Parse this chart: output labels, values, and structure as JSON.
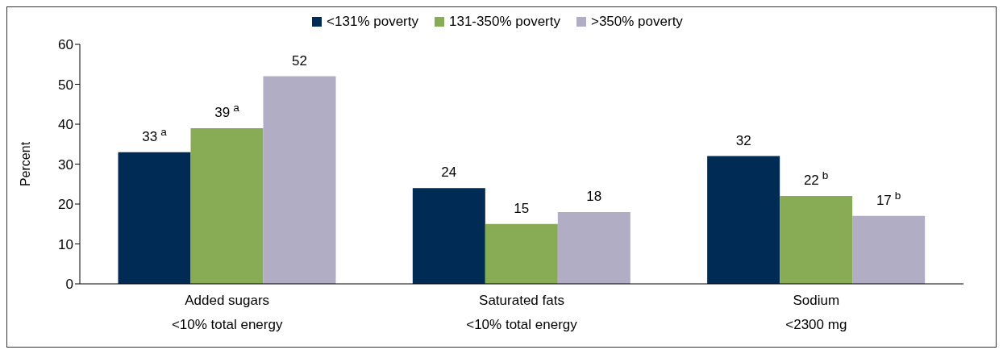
{
  "chart_data": {
    "type": "bar",
    "ylabel": "Percent",
    "categories": [
      "Added sugars\n<10% total energy",
      "Saturated fats\n<10% total energy",
      "Sodium\n<2300 mg"
    ],
    "series": [
      {
        "name": "<131% poverty",
        "color": "#002b55",
        "values": [
          33,
          24,
          32
        ],
        "value_labels": [
          "33$^{a}$",
          "24",
          "32"
        ]
      },
      {
        "name": "131-350% poverty",
        "color": "#88ab55",
        "values": [
          39,
          15,
          22
        ],
        "value_labels": [
          "39$^{a}$",
          "15",
          "22$^{b}$"
        ]
      },
      {
        "name": ">350% poverty",
        "color": "#b0adc4",
        "values": [
          52,
          18,
          17
        ],
        "value_labels": [
          "52",
          "18",
          "17$^{b}$"
        ]
      }
    ],
    "ylim": [
      0,
      60
    ],
    "yticks": [
      0,
      10,
      20,
      30,
      40,
      50,
      60
    ],
    "grid": false,
    "legend": "top"
  }
}
